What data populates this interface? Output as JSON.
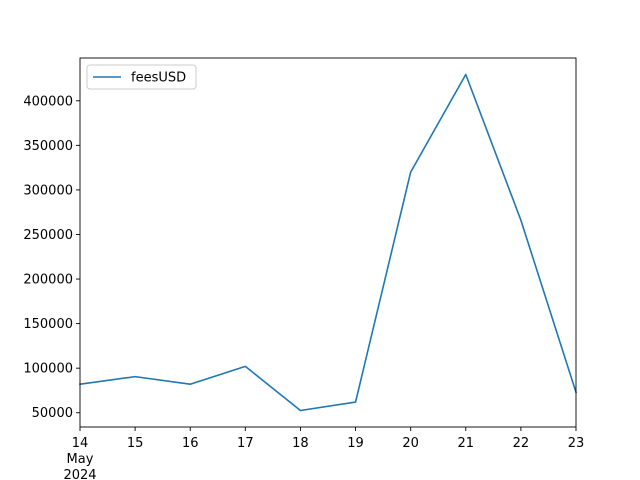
{
  "chart_data": {
    "type": "line",
    "x": [
      "2024-05-14",
      "2024-05-15",
      "2024-05-16",
      "2024-05-17",
      "2024-05-18",
      "2024-05-19",
      "2024-05-20",
      "2024-05-21",
      "2024-05-22",
      "2024-05-23"
    ],
    "xtick_labels": [
      "14",
      "15",
      "16",
      "17",
      "18",
      "19",
      "20",
      "21",
      "22",
      "23"
    ],
    "x_secondary_labels": [
      "May",
      "2024"
    ],
    "series": [
      {
        "name": "feesUSD",
        "color": "#1f77b4",
        "values": [
          82000,
          90500,
          82000,
          102000,
          52500,
          62000,
          320000,
          429500,
          266000,
          73000
        ]
      }
    ],
    "yticks": [
      50000,
      100000,
      150000,
      200000,
      250000,
      300000,
      350000,
      400000
    ],
    "ylim": [
      34000,
      448000
    ],
    "grid": false,
    "legend_position": "upper left"
  }
}
